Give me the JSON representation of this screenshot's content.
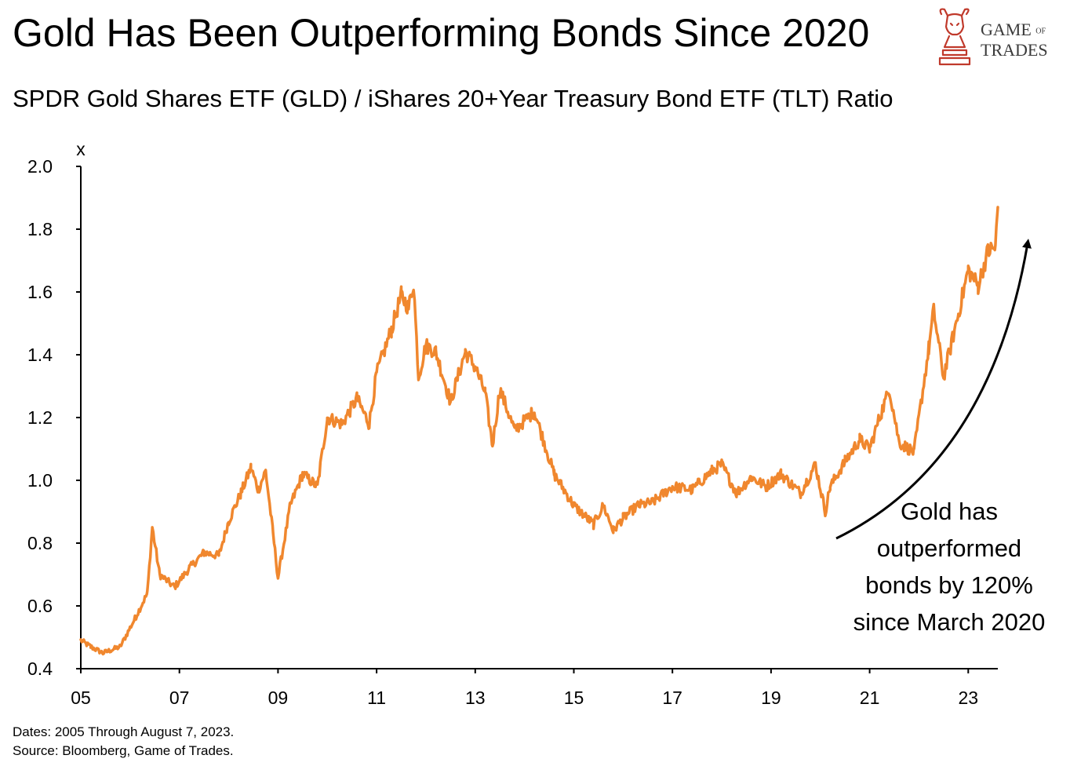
{
  "title": "Gold Has Been Outperforming Bonds Since 2020",
  "subtitle": "SPDR Gold Shares ETF (GLD) / iShares 20+Year Treasury Bond ETF (TLT) Ratio",
  "logo": {
    "line1": "GAME",
    "line1_small": "OF",
    "line2": "TRADES",
    "icon": "bull-chess-knight-icon",
    "color": "#c0392b"
  },
  "annotation": [
    "Gold has",
    "outperformed",
    "bonds by 120%",
    "since March 2020"
  ],
  "footnotes": [
    "Dates: 2005 Through August 7, 2023.",
    "Source: Bloomberg, Game of Trades."
  ],
  "chart_data": {
    "type": "line",
    "title": "Gold Has Been Outperforming Bonds Since 2020",
    "ylabel": "x",
    "xlabel": "",
    "ylim": [
      0.4,
      2.0
    ],
    "xlim": [
      2005,
      2023.6
    ],
    "yticks": [
      "2.0",
      "1.8",
      "1.6",
      "1.4",
      "1.2",
      "1.0",
      "0.8",
      "0.6",
      "0.4"
    ],
    "xticks": [
      "05",
      "07",
      "09",
      "11",
      "13",
      "15",
      "17",
      "19",
      "21",
      "23"
    ],
    "grid": false,
    "line_color": "#F0872E",
    "series": [
      {
        "x": [
          2005.0,
          2005.2,
          2005.45,
          2005.8,
          2006.1,
          2006.35,
          2006.45,
          2006.6,
          2006.9,
          2007.2,
          2007.5,
          2007.8,
          2008.0,
          2008.25,
          2008.45,
          2008.6,
          2008.75,
          2008.9,
          2009.0,
          2009.25,
          2009.5,
          2009.8,
          2010.0,
          2010.3,
          2010.6,
          2010.85,
          2011.0,
          2011.3,
          2011.5,
          2011.65,
          2011.75,
          2011.85,
          2012.0,
          2012.2,
          2012.5,
          2012.8,
          2013.0,
          2013.2,
          2013.35,
          2013.5,
          2013.8,
          2014.2,
          2014.6,
          2015.0,
          2015.4,
          2015.6,
          2015.8,
          2016.0,
          2016.3,
          2016.6,
          2017.0,
          2017.4,
          2017.8,
          2018.0,
          2018.3,
          2018.6,
          2018.9,
          2019.2,
          2019.6,
          2019.9,
          2020.1,
          2020.2,
          2020.5,
          2020.8,
          2021.0,
          2021.2,
          2021.4,
          2021.6,
          2021.9,
          2022.0,
          2022.2,
          2022.3,
          2022.5,
          2022.8,
          2023.0,
          2023.2,
          2023.4,
          2023.55,
          2023.6
        ],
        "y": [
          0.49,
          0.47,
          0.45,
          0.47,
          0.56,
          0.64,
          0.85,
          0.7,
          0.66,
          0.72,
          0.77,
          0.76,
          0.87,
          0.96,
          1.04,
          0.97,
          1.03,
          0.83,
          0.69,
          0.92,
          1.02,
          0.98,
          1.2,
          1.18,
          1.26,
          1.18,
          1.34,
          1.48,
          1.59,
          1.55,
          1.63,
          1.33,
          1.43,
          1.41,
          1.25,
          1.41,
          1.36,
          1.28,
          1.11,
          1.29,
          1.16,
          1.22,
          1.02,
          0.92,
          0.86,
          0.92,
          0.84,
          0.88,
          0.92,
          0.93,
          0.98,
          0.97,
          1.03,
          1.05,
          0.96,
          1.01,
          0.98,
          1.02,
          0.96,
          1.05,
          0.9,
          0.98,
          1.06,
          1.13,
          1.1,
          1.2,
          1.29,
          1.12,
          1.09,
          1.2,
          1.42,
          1.54,
          1.33,
          1.53,
          1.67,
          1.62,
          1.73,
          1.74,
          1.87
        ]
      }
    ]
  }
}
